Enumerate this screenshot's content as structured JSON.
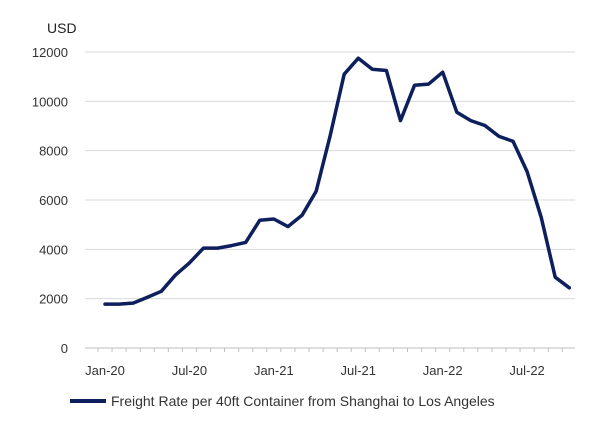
{
  "chart_data": {
    "type": "line",
    "ylabel": "USD",
    "ylim": [
      0,
      12000
    ],
    "yticks": [
      "0",
      "2000",
      "4000",
      "6000",
      "8000",
      "10000",
      "12000"
    ],
    "xticks": [
      "Jan-20",
      "Jul-20",
      "Jan-21",
      "Jul-21",
      "Jan-22",
      "Jul-22"
    ],
    "grid": true,
    "legend_position": "bottom",
    "series": [
      {
        "name": "Freight Rate per 40ft Container from Shanghai to Los Angeles",
        "color": "#0d1f5c",
        "x": [
          "2020-01",
          "2020-02",
          "2020-03",
          "2020-04",
          "2020-05",
          "2020-06",
          "2020-07",
          "2020-08",
          "2020-09",
          "2020-10",
          "2020-11",
          "2020-12",
          "2021-01",
          "2021-02",
          "2021-03",
          "2021-04",
          "2021-05",
          "2021-06",
          "2021-07",
          "2021-08",
          "2021-09",
          "2021-10",
          "2021-11",
          "2021-12",
          "2022-01",
          "2022-02",
          "2022-03",
          "2022-04",
          "2022-05",
          "2022-06",
          "2022-07",
          "2022-08",
          "2022-09",
          "2022-10",
          "2022-11"
        ],
        "values": [
          1780,
          1780,
          1820,
          2050,
          2300,
          2950,
          3450,
          4050,
          4050,
          4150,
          4280,
          5180,
          5230,
          4920,
          5380,
          6350,
          8600,
          11100,
          11750,
          11300,
          11250,
          9220,
          10650,
          10700,
          11180,
          9560,
          9220,
          9020,
          8580,
          8380,
          7150,
          5300,
          2870,
          2440,
          null
        ]
      }
    ]
  }
}
